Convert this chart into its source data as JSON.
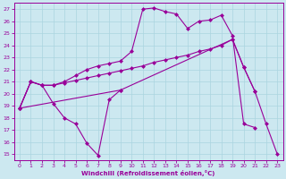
{
  "bg_color": "#cce8f0",
  "grid_color": "#aad4e0",
  "line_color": "#990099",
  "markersize": 2.5,
  "linewidth": 0.8,
  "xlabel": "Windchill (Refroidissement éolien,°C)",
  "xlim": [
    -0.5,
    23.5
  ],
  "ylim": [
    14.5,
    27.5
  ],
  "xticks": [
    0,
    1,
    2,
    3,
    4,
    5,
    6,
    7,
    8,
    9,
    10,
    11,
    12,
    13,
    14,
    15,
    16,
    17,
    18,
    19,
    20,
    21,
    22,
    23
  ],
  "yticks": [
    15,
    16,
    17,
    18,
    19,
    20,
    21,
    22,
    23,
    24,
    25,
    26,
    27
  ],
  "line1_x": [
    0,
    1,
    2,
    3,
    4,
    5,
    6,
    7,
    8,
    9
  ],
  "line1_y": [
    18.8,
    21.0,
    20.7,
    19.2,
    18.0,
    17.5,
    15.9,
    14.9,
    19.5,
    20.3
  ],
  "line2_x": [
    0,
    1,
    2,
    3,
    4,
    5,
    6,
    7,
    8,
    9,
    10,
    11,
    12,
    13,
    14,
    15,
    16,
    17,
    18,
    19,
    20,
    21
  ],
  "line2_y": [
    18.8,
    21.0,
    20.7,
    20.7,
    20.9,
    21.1,
    21.3,
    21.5,
    21.7,
    21.9,
    22.1,
    22.3,
    22.6,
    22.8,
    23.0,
    23.2,
    23.5,
    23.7,
    24.0,
    24.5,
    22.2,
    20.2
  ],
  "line3_x": [
    0,
    1,
    2,
    3,
    4,
    5,
    6,
    7,
    8,
    9,
    10,
    11,
    12,
    13,
    14,
    15,
    16,
    17,
    18,
    19,
    20,
    21
  ],
  "line3_y": [
    18.8,
    21.0,
    20.7,
    20.7,
    21.0,
    21.5,
    22.0,
    22.3,
    22.5,
    22.7,
    23.5,
    27.0,
    27.1,
    26.8,
    26.6,
    25.4,
    26.0,
    26.1,
    26.5,
    24.8,
    17.5,
    17.2
  ],
  "line4_x": [
    0,
    9,
    19,
    20,
    21,
    22,
    23
  ],
  "line4_y": [
    18.8,
    20.3,
    24.5,
    22.2,
    20.2,
    17.5,
    15.0
  ]
}
